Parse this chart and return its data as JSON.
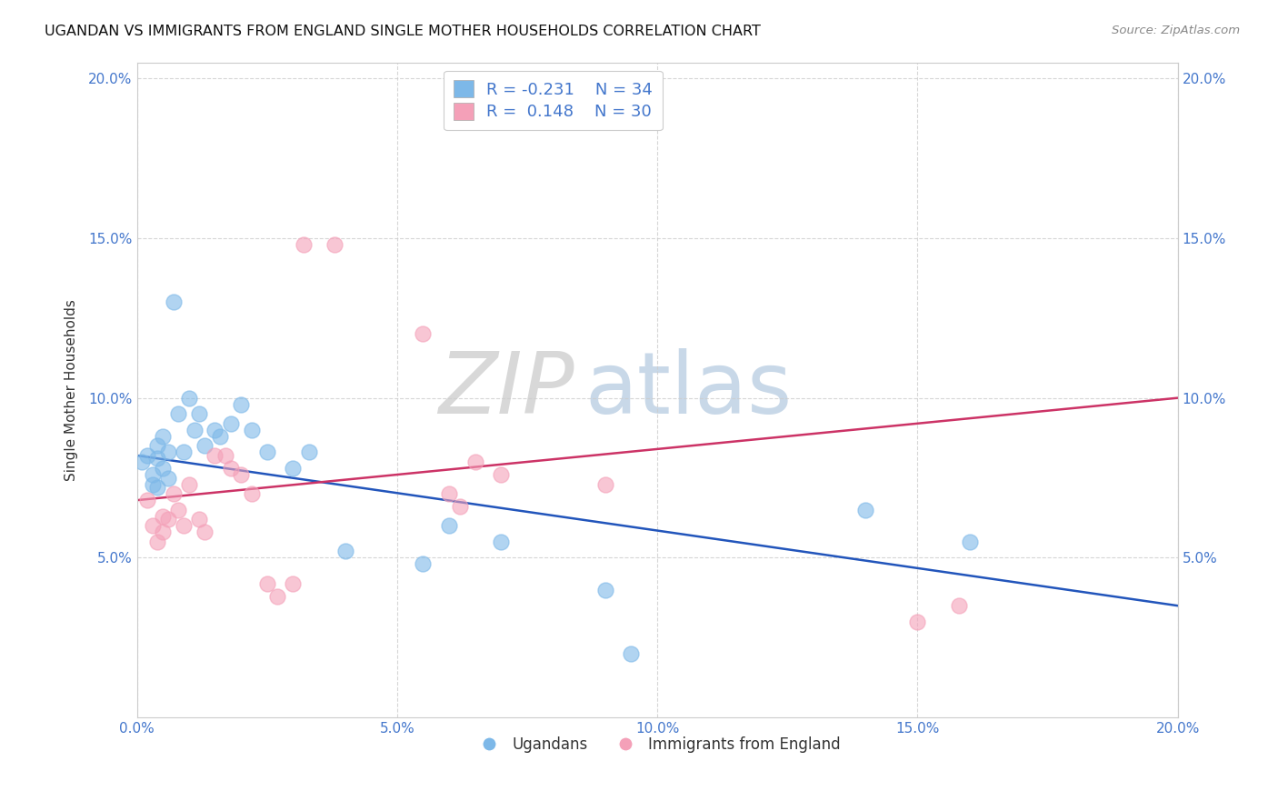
{
  "title": "UGANDAN VS IMMIGRANTS FROM ENGLAND SINGLE MOTHER HOUSEHOLDS CORRELATION CHART",
  "source": "Source: ZipAtlas.com",
  "ylabel": "Single Mother Households",
  "xlim": [
    0.0,
    0.2
  ],
  "ylim": [
    0.0,
    0.205
  ],
  "xticks": [
    0.0,
    0.05,
    0.1,
    0.15,
    0.2
  ],
  "yticks": [
    0.05,
    0.1,
    0.15,
    0.2
  ],
  "ytick_labels": [
    "5.0%",
    "10.0%",
    "15.0%",
    "20.0%"
  ],
  "xtick_labels": [
    "0.0%",
    "5.0%",
    "10.0%",
    "15.0%",
    "20.0%"
  ],
  "blue_R": -0.231,
  "blue_N": 34,
  "pink_R": 0.148,
  "pink_N": 30,
  "blue_color": "#7db8e8",
  "pink_color": "#f4a0b8",
  "blue_line_color": "#2255bb",
  "pink_line_color": "#cc3366",
  "legend_label_blue": "Ugandans",
  "legend_label_pink": "Immigrants from England",
  "watermark_zip": "ZIP",
  "watermark_atlas": "atlas",
  "blue_x": [
    0.001,
    0.002,
    0.003,
    0.003,
    0.004,
    0.004,
    0.004,
    0.005,
    0.005,
    0.006,
    0.006,
    0.007,
    0.008,
    0.009,
    0.01,
    0.011,
    0.012,
    0.013,
    0.015,
    0.016,
    0.018,
    0.02,
    0.022,
    0.025,
    0.03,
    0.033,
    0.04,
    0.055,
    0.06,
    0.07,
    0.09,
    0.095,
    0.14,
    0.16
  ],
  "blue_y": [
    0.08,
    0.082,
    0.076,
    0.073,
    0.085,
    0.081,
    0.072,
    0.088,
    0.078,
    0.083,
    0.075,
    0.13,
    0.095,
    0.083,
    0.1,
    0.09,
    0.095,
    0.085,
    0.09,
    0.088,
    0.092,
    0.098,
    0.09,
    0.083,
    0.078,
    0.083,
    0.052,
    0.048,
    0.06,
    0.055,
    0.04,
    0.02,
    0.065,
    0.055
  ],
  "pink_x": [
    0.002,
    0.003,
    0.004,
    0.005,
    0.005,
    0.006,
    0.007,
    0.008,
    0.009,
    0.01,
    0.012,
    0.013,
    0.015,
    0.017,
    0.018,
    0.02,
    0.022,
    0.025,
    0.027,
    0.03,
    0.032,
    0.038,
    0.055,
    0.06,
    0.062,
    0.065,
    0.07,
    0.09,
    0.15,
    0.158
  ],
  "pink_y": [
    0.068,
    0.06,
    0.055,
    0.063,
    0.058,
    0.062,
    0.07,
    0.065,
    0.06,
    0.073,
    0.062,
    0.058,
    0.082,
    0.082,
    0.078,
    0.076,
    0.07,
    0.042,
    0.038,
    0.042,
    0.148,
    0.148,
    0.12,
    0.07,
    0.066,
    0.08,
    0.076,
    0.073,
    0.03,
    0.035
  ]
}
